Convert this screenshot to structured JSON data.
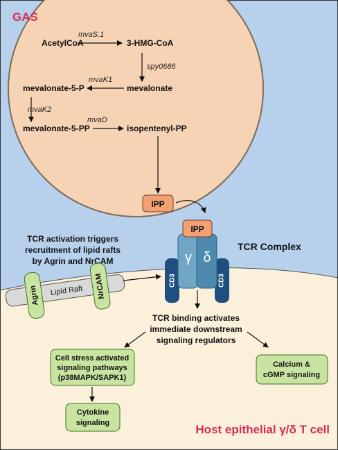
{
  "colors": {
    "sky": "#b7d0ec",
    "cell": "#fbf0da",
    "gas_fill": "#f6d3b5",
    "gas_stroke": "#7a6a5a",
    "accent_red": "#d22e5b",
    "ipp_fill": "#f2a175",
    "tcr_light": "#6fa6c6",
    "tcr_mid": "#4e89b0",
    "cd3": "#1f4f80",
    "green_fill": "#c9e3a0",
    "green_stroke": "#3f6f24",
    "raft_fill": "#d9d9d9"
  },
  "gas": {
    "label": "GAS",
    "metabolites": {
      "acetylcoa": "AcetylCoA",
      "hmgcoa": "3-HMG-CoA",
      "mevalonate": "mevalonate",
      "mevalonate5p": "mevalonate-5-P",
      "mevalonate5pp": "mevalonate-5-PP",
      "isopentenylpp": "isopentenyl-PP"
    },
    "enzymes": {
      "mvas1": "mvaS.1",
      "spy0686": "spy0686",
      "mvak1": "mvaK1",
      "mvak2": "mvaK2",
      "mvad": "mvaD"
    }
  },
  "ipp": {
    "free_label": "IPP",
    "bound_label": "IPP"
  },
  "tcr": {
    "complex_label": "TCR Complex",
    "gamma": "γ",
    "delta": "δ",
    "cd3_left": "CD3",
    "cd3_right": "CD3"
  },
  "raft": {
    "caption_lines": [
      "TCR activation triggers",
      "recruitment of lipid rafts",
      "by Agrin and NrCAM"
    ],
    "agrin": "Agrin",
    "lipid_raft": "Lipid Raft",
    "nrcam": "NrCAM"
  },
  "signaling": {
    "binding_lines": [
      "TCR binding activates",
      "immediate downstream",
      "signaling regulators"
    ],
    "stress_lines": [
      "Cell stress activated",
      "signaling pathways",
      "(p38MAPK/SAPK1)"
    ],
    "calcium_lines": [
      "Calcium &",
      "cGMP signaling"
    ],
    "cytokine_lines": [
      "Cytokine",
      "signaling"
    ]
  },
  "host_label": "Host epithelial γ/δ T cell"
}
